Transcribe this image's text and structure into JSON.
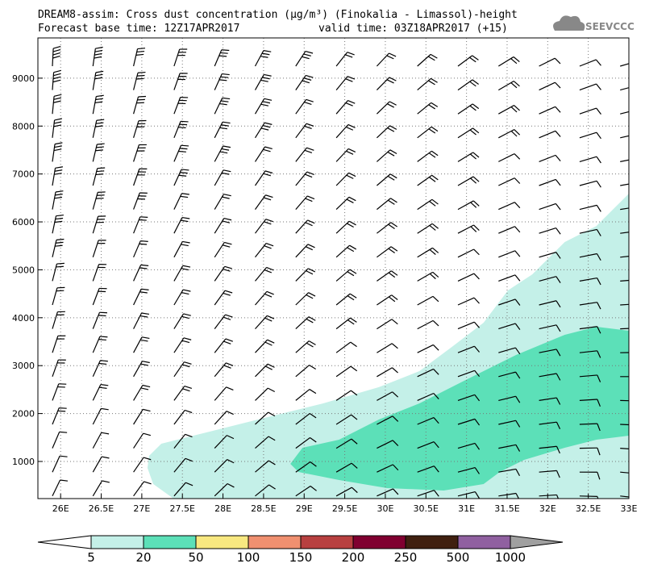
{
  "chart_data": {
    "type": "cross-section",
    "title": "DREAM8-assim: Cross dust concentration (µg/m³) (Finokalia - Limassol)-height",
    "subtitle": "Forecast base time: 12Z17APR2017",
    "valid_time": "valid time: 03Z18APR2017 (+15)",
    "logo": "SEEVCCC",
    "xlim": [
      25.72,
      33
    ],
    "ylim": [
      225,
      9840
    ],
    "xticks": [
      {
        "value": 26,
        "label": "26E"
      },
      {
        "value": 26.5,
        "label": "26.5E"
      },
      {
        "value": 27,
        "label": "27E"
      },
      {
        "value": 27.5,
        "label": "27.5E"
      },
      {
        "value": 28,
        "label": "28E"
      },
      {
        "value": 28.5,
        "label": "28.5E"
      },
      {
        "value": 29,
        "label": "29E"
      },
      {
        "value": 29.5,
        "label": "29.5E"
      },
      {
        "value": 30,
        "label": "30E"
      },
      {
        "value": 30.5,
        "label": "30.5E"
      },
      {
        "value": 31,
        "label": "31E"
      },
      {
        "value": 31.5,
        "label": "31.5E"
      },
      {
        "value": 32,
        "label": "32E"
      },
      {
        "value": 32.5,
        "label": "32.5E"
      },
      {
        "value": 33,
        "label": "33E"
      }
    ],
    "yticks": [
      1000,
      2000,
      3000,
      4000,
      5000,
      6000,
      7000,
      8000,
      9000
    ],
    "grid": true,
    "contours": [
      {
        "color": "#c4f0e8",
        "x": [
          27.07,
          27.09,
          27.24,
          27.64,
          28.43,
          29.23,
          29.92,
          30.42,
          30.82,
          31.21,
          31.51,
          31.81,
          32.21,
          32.6,
          33,
          33,
          27.39,
          27.14
        ],
        "y": [
          865,
          1118,
          1370,
          1540,
          1875,
          2210,
          2550,
          2885,
          3390,
          3895,
          4570,
          4905,
          5580,
          5915,
          6590,
          225,
          225,
          530
        ]
      },
      {
        "color": "#5ce0b8",
        "x": [
          28.83,
          28.98,
          29.43,
          29.92,
          30.42,
          31.01,
          31.61,
          32.21,
          32.6,
          33,
          33,
          32.6,
          32.21,
          31.71,
          31.41,
          31.21,
          30.72,
          30.02,
          29.43,
          28.93
        ],
        "y": [
          950,
          1286,
          1455,
          1875,
          2212,
          2717,
          3222,
          3643,
          3811,
          3727,
          1539,
          1455,
          1286,
          1034,
          781,
          529,
          394,
          444,
          613,
          781
        ]
      }
    ],
    "colorbar": {
      "levels": [
        5,
        20,
        50,
        100,
        150,
        200,
        250,
        500,
        1000
      ],
      "colors": [
        "#ffffff",
        "#c4f0e8",
        "#5ce0b8",
        "#f8e880",
        "#f09070",
        "#b84040",
        "#800030",
        "#402010",
        "#9060a0",
        "#a0a0a0"
      ]
    }
  }
}
